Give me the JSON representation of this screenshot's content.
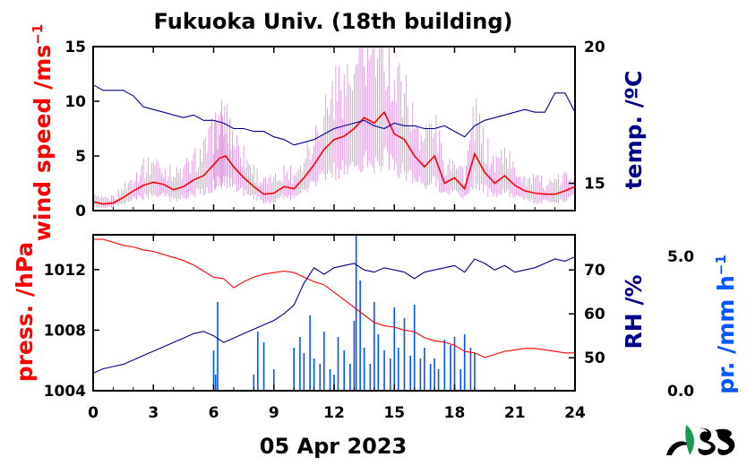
{
  "title": "Fukuoka Univ. (18th building)",
  "date_label": "05 Apr 2023",
  "colors": {
    "wind": "#ff0000",
    "wind_gust": "#cc66cc",
    "temp": "#00008b",
    "press": "#ff0000",
    "rh": "#00008b",
    "precip": "#0055ff"
  },
  "logo_icon": "logo-icon",
  "chart_data": [
    {
      "type": "line",
      "panel": "top",
      "xlim": [
        0,
        24
      ],
      "xticks": [
        "0",
        "3",
        "6",
        "9",
        "12",
        "15",
        "18",
        "21",
        "24"
      ],
      "ylabel_left": "wind speed /ms",
      "ylabel_left_sup": "−1",
      "ylim_left": [
        0,
        15
      ],
      "yticks_left": [
        "0",
        "5",
        "10",
        "15"
      ],
      "ylabel_right": "temp. /ºC",
      "ylim_right": [
        14,
        20
      ],
      "yticks_right": [
        "15",
        "20"
      ],
      "series": [
        {
          "key": "wind",
          "axis": "left",
          "x": [
            0,
            0.5,
            1,
            1.5,
            2,
            2.5,
            3,
            3.5,
            4,
            4.5,
            5,
            5.5,
            6,
            6.3,
            6.6,
            7,
            7.5,
            8,
            8.5,
            9,
            9.5,
            10,
            10.5,
            11,
            11.5,
            12,
            12.5,
            13,
            13.5,
            14,
            14.5,
            15,
            15.5,
            16,
            16.5,
            17,
            17.5,
            18,
            18.5,
            19,
            19.5,
            20,
            20.5,
            21,
            21.5,
            22,
            22.5,
            23,
            23.5,
            24
          ],
          "values": [
            0.8,
            0.6,
            0.7,
            1.2,
            1.8,
            2.3,
            2.6,
            2.4,
            1.9,
            2.2,
            2.8,
            3.2,
            4.2,
            4.8,
            5.0,
            4.0,
            3.0,
            2.2,
            1.5,
            1.6,
            2.2,
            2.0,
            3.0,
            4.2,
            5.6,
            6.5,
            6.8,
            7.5,
            8.5,
            8.0,
            9.0,
            7.0,
            6.5,
            5.0,
            4.0,
            5.0,
            2.5,
            3.0,
            2.0,
            5.2,
            3.5,
            2.5,
            3.2,
            2.3,
            1.8,
            1.6,
            1.5,
            1.5,
            1.8,
            2.2
          ]
        },
        {
          "key": "temp",
          "axis": "right",
          "x": [
            0,
            0.5,
            1,
            1.5,
            2,
            2.5,
            3,
            3.5,
            4,
            4.5,
            5,
            5.5,
            6,
            6.5,
            7,
            7.5,
            8,
            8.5,
            9,
            9.5,
            10,
            10.5,
            11,
            11.5,
            12,
            12.5,
            13,
            13.5,
            14,
            14.5,
            15,
            15.5,
            16,
            16.5,
            17,
            17.5,
            18,
            18.5,
            19,
            19.5,
            20,
            20.5,
            21,
            21.5,
            22,
            22.5,
            23,
            23.5,
            24
          ],
          "values": [
            18.6,
            18.4,
            18.4,
            18.4,
            18.2,
            17.8,
            17.7,
            17.6,
            17.5,
            17.4,
            17.5,
            17.3,
            17.3,
            17.2,
            17.0,
            17.0,
            16.9,
            16.9,
            16.7,
            16.6,
            16.4,
            16.5,
            16.6,
            16.8,
            17.0,
            17.1,
            17.2,
            17.3,
            17.1,
            17.0,
            17.2,
            17.1,
            17.1,
            17.0,
            17.0,
            17.1,
            16.9,
            16.7,
            17.1,
            17.3,
            17.4,
            17.5,
            17.6,
            17.7,
            17.6,
            17.6,
            18.3,
            18.3,
            17.6
          ]
        }
      ]
    },
    {
      "type": "line",
      "panel": "bottom",
      "xlim": [
        0,
        24
      ],
      "xticks": [
        "0",
        "3",
        "6",
        "9",
        "12",
        "15",
        "18",
        "21",
        "24"
      ],
      "ylabel_left": "press. /hPa",
      "ylim_left": [
        1004,
        1014.3
      ],
      "yticks_left": [
        "1004",
        "1008",
        "1012"
      ],
      "ylabel_right": "RH /%",
      "ylim_right": [
        42.5,
        78
      ],
      "yticks_right": [
        "50",
        "60",
        "70"
      ],
      "ylabel_right2": "pr. /mm h",
      "ylabel_right2_sup": "−1",
      "ylim_right2": [
        0,
        5.8
      ],
      "yticks_right2": [
        "0.0",
        "5.0"
      ],
      "series": [
        {
          "key": "press",
          "axis": "left",
          "x": [
            0,
            0.5,
            1,
            1.5,
            2,
            2.5,
            3,
            3.5,
            4,
            4.5,
            5,
            5.5,
            6,
            6.5,
            7,
            7.5,
            8,
            8.5,
            9,
            9.5,
            10,
            10.5,
            11,
            11.5,
            12,
            12.5,
            13,
            13.5,
            14,
            14.5,
            15,
            15.5,
            16,
            16.5,
            17,
            17.5,
            18,
            18.5,
            19,
            19.5,
            20,
            20.5,
            21,
            21.5,
            22,
            22.5,
            23,
            23.5,
            24
          ],
          "values": [
            1014.0,
            1014.0,
            1013.8,
            1013.6,
            1013.5,
            1013.3,
            1013.2,
            1013.0,
            1012.8,
            1012.6,
            1012.3,
            1011.9,
            1011.5,
            1011.4,
            1010.8,
            1011.2,
            1011.5,
            1011.7,
            1011.8,
            1011.9,
            1011.8,
            1011.5,
            1011.2,
            1011.0,
            1010.5,
            1010.0,
            1009.5,
            1009.0,
            1008.5,
            1008.3,
            1008.2,
            1008.0,
            1007.9,
            1007.5,
            1007.3,
            1007.2,
            1007.0,
            1006.6,
            1006.5,
            1006.2,
            1006.4,
            1006.6,
            1006.7,
            1006.8,
            1006.8,
            1006.7,
            1006.6,
            1006.5,
            1006.5
          ]
        },
        {
          "key": "rh",
          "axis": "right",
          "x": [
            0,
            0.5,
            1,
            1.5,
            2,
            2.5,
            3,
            3.5,
            4,
            4.5,
            5,
            5.5,
            6,
            6.5,
            7,
            7.5,
            8,
            8.5,
            9,
            9.5,
            10,
            10.5,
            11,
            11.5,
            12,
            12.5,
            13,
            13.5,
            14,
            14.5,
            15,
            15.5,
            16,
            16.5,
            17,
            17.5,
            18,
            18.5,
            19,
            19.5,
            20,
            20.5,
            21,
            21.5,
            22,
            22.5,
            23,
            23.5,
            24
          ],
          "values": [
            46.5,
            47.5,
            48.0,
            48.5,
            49.5,
            50.5,
            51.5,
            52.5,
            53.5,
            54.5,
            55.5,
            56.0,
            55.0,
            53.5,
            54.5,
            55.5,
            56.5,
            57.5,
            58.5,
            60.0,
            62.0,
            67.0,
            70.5,
            69.0,
            70.5,
            71.0,
            71.5,
            70.0,
            69.5,
            70.5,
            70.0,
            69.5,
            68.0,
            69.5,
            70.0,
            70.5,
            71.0,
            69.5,
            72.5,
            71.5,
            70.0,
            71.0,
            69.5,
            70.0,
            70.5,
            71.5,
            72.5,
            72.0,
            73.0
          ]
        },
        {
          "key": "precip",
          "axis": "right2",
          "type": "bar",
          "x": [
            6.0,
            6.1,
            6.2,
            8.0,
            8.2,
            8.5,
            9.0,
            10.0,
            10.3,
            10.5,
            10.8,
            11.0,
            11.3,
            11.5,
            11.8,
            12.0,
            12.2,
            12.5,
            12.8,
            13.0,
            13.1,
            13.3,
            13.5,
            13.8,
            14.0,
            14.2,
            14.5,
            14.8,
            15.0,
            15.2,
            15.5,
            15.8,
            16.0,
            16.3,
            16.5,
            16.8,
            17.0,
            17.2,
            17.5,
            17.8,
            18.0,
            18.3,
            18.5,
            18.8,
            19.0
          ],
          "values": [
            1.5,
            0.6,
            3.3,
            0.6,
            2.2,
            1.8,
            0.8,
            1.6,
            2.0,
            1.4,
            2.8,
            1.2,
            1.0,
            2.2,
            0.8,
            0.6,
            2.0,
            1.5,
            1.0,
            2.6,
            5.8,
            4.1,
            1.6,
            1.0,
            3.3,
            2.1,
            1.5,
            1.2,
            3.1,
            1.6,
            2.7,
            1.3,
            3.2,
            1.2,
            1.6,
            1.0,
            1.2,
            0.8,
            1.9,
            1.7,
            2.0,
            0.8,
            2.1,
            1.6,
            1.4
          ]
        }
      ]
    }
  ]
}
